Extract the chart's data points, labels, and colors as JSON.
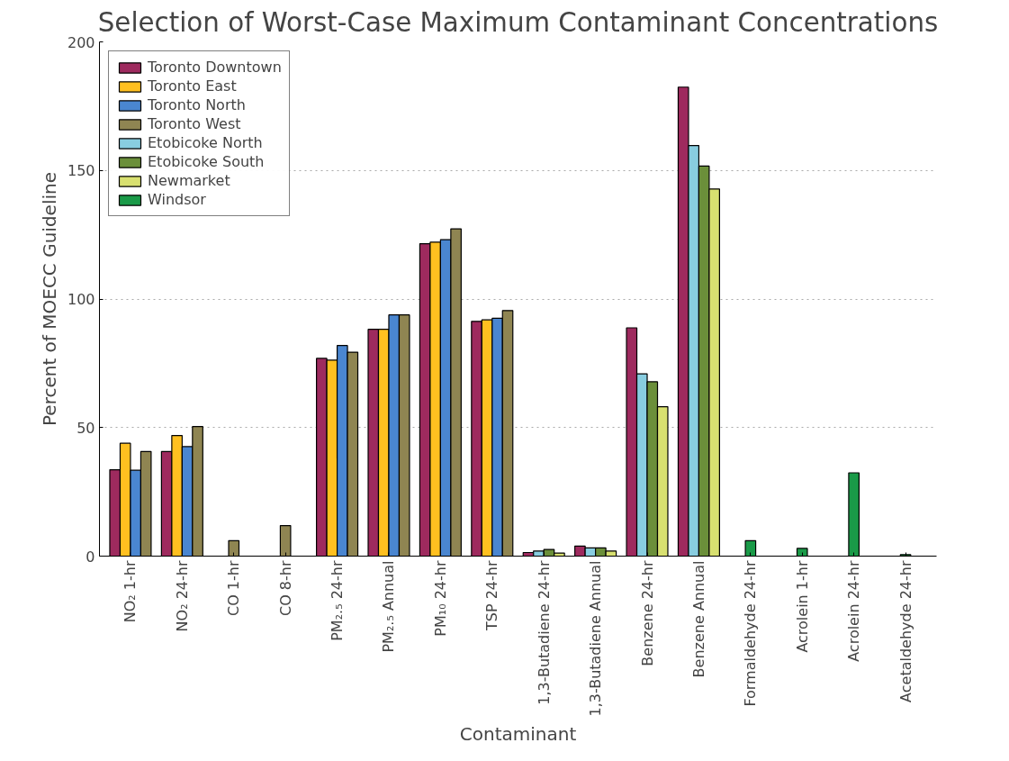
{
  "chart_data": {
    "type": "bar",
    "title": "Selection of Worst-Case Maximum Contaminant Concentrations",
    "xlabel": "Contaminant",
    "ylabel": "Percent of MOECC Guideline",
    "categories": [
      "NO₂ 1-hr",
      "NO₂ 24-hr",
      "CO 1-hr",
      "CO 8-hr",
      "PM₂.₅ 24-hr",
      "PM₂.₅ Annual",
      "PM₁₀ 24-hr",
      "TSP 24-hr",
      "1,3-Butadiene 24-hr",
      "1,3-Butadiene Annual",
      "Benzene 24-hr",
      "Benzene Annual",
      "Formaldehyde 24-hr",
      "Acrolein 1-hr",
      "Acrolein 24-hr",
      "Acetaldehyde 24-hr"
    ],
    "series": [
      {
        "name": "Toronto Downtown",
        "color": "#9e2a5e",
        "values": [
          33.6,
          40.7,
          null,
          null,
          76.9,
          88.2,
          121.5,
          91.3,
          1.4,
          3.9,
          88.8,
          182.4,
          null,
          null,
          null,
          null
        ]
      },
      {
        "name": "Toronto East",
        "color": "#ffc020",
        "values": [
          43.9,
          46.9,
          null,
          null,
          76.2,
          88.2,
          122.1,
          91.9,
          null,
          null,
          null,
          null,
          null,
          null,
          null,
          null
        ]
      },
      {
        "name": "Toronto North",
        "color": "#4a86d0",
        "values": [
          33.4,
          42.6,
          null,
          null,
          81.9,
          93.8,
          123.1,
          92.5,
          null,
          null,
          null,
          null,
          null,
          null,
          null,
          null
        ]
      },
      {
        "name": "Toronto West",
        "color": "#8f8552",
        "values": [
          40.7,
          50.4,
          6.0,
          11.9,
          79.3,
          93.8,
          127.3,
          95.5,
          null,
          null,
          null,
          null,
          null,
          null,
          null,
          null
        ]
      },
      {
        "name": "Etobicoke North",
        "color": "#88cde0",
        "values": [
          null,
          null,
          null,
          null,
          null,
          null,
          null,
          null,
          2.0,
          3.2,
          70.9,
          159.7,
          null,
          null,
          null,
          null
        ]
      },
      {
        "name": "Etobicoke South",
        "color": "#6b8f3a",
        "values": [
          null,
          null,
          null,
          null,
          null,
          null,
          null,
          null,
          2.6,
          3.2,
          67.8,
          151.7,
          null,
          null,
          null,
          null
        ]
      },
      {
        "name": "Newmarket",
        "color": "#d8e070",
        "values": [
          null,
          null,
          null,
          null,
          null,
          null,
          null,
          null,
          1.2,
          2.0,
          58.1,
          142.8,
          null,
          null,
          null,
          null
        ]
      },
      {
        "name": "Windsor",
        "color": "#1a9a48",
        "values": [
          null,
          null,
          null,
          null,
          null,
          null,
          null,
          null,
          null,
          null,
          null,
          null,
          6.0,
          3.0,
          32.4,
          0.6
        ]
      }
    ],
    "ylim": [
      0,
      200
    ],
    "yticks": [
      0,
      50,
      100,
      150,
      200
    ],
    "grid": "y",
    "legend": "top left"
  }
}
